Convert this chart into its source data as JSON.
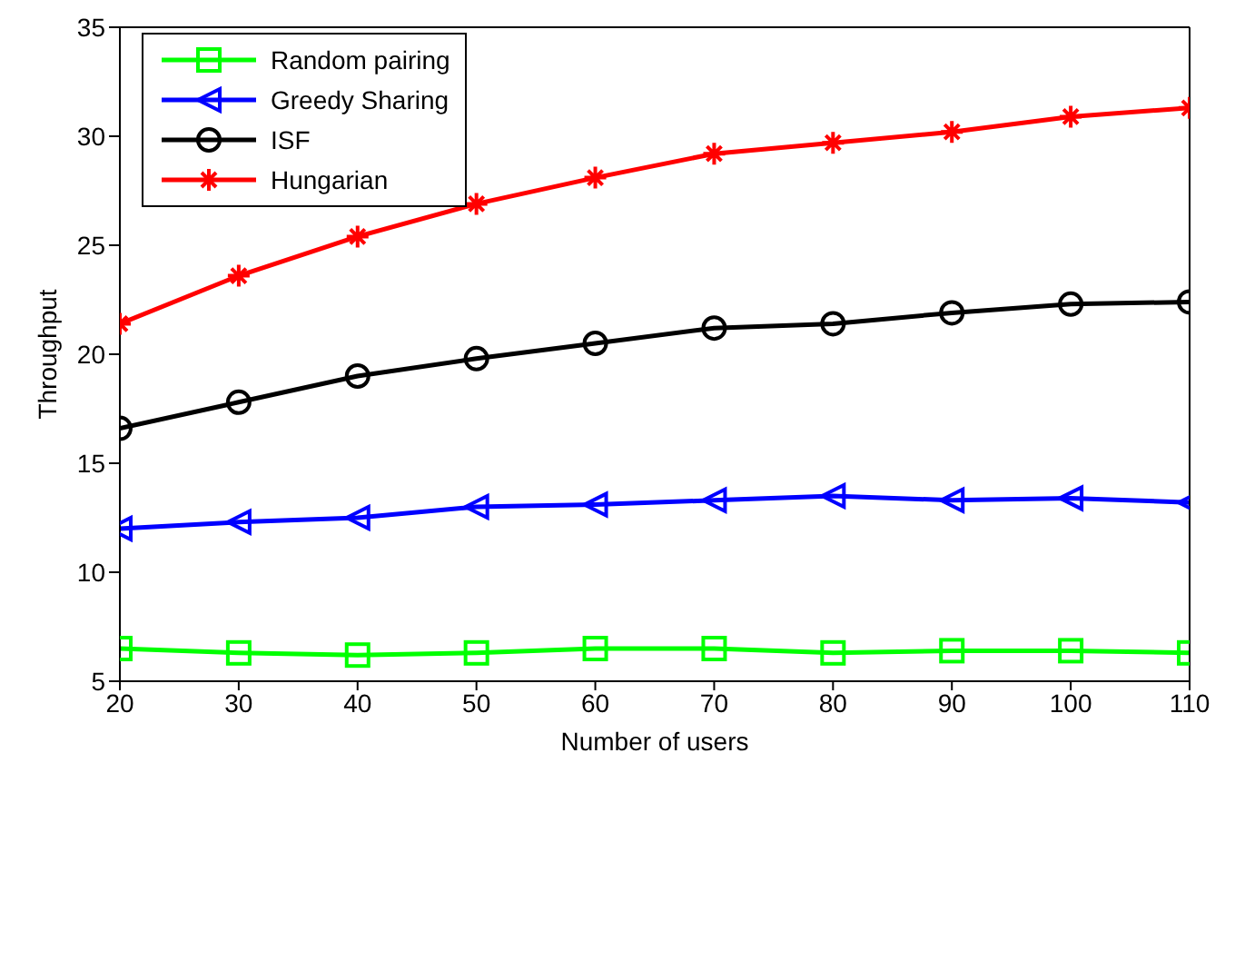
{
  "chart_data": {
    "type": "line",
    "xlabel": "Number of users",
    "ylabel": "Throughput",
    "x": [
      20,
      30,
      40,
      50,
      60,
      70,
      80,
      90,
      100,
      110
    ],
    "xlim": [
      20,
      110
    ],
    "xticks": [
      20,
      30,
      40,
      50,
      60,
      70,
      80,
      90,
      100,
      110
    ],
    "ylim": [
      5,
      35
    ],
    "yticks": [
      5,
      10,
      15,
      20,
      25,
      30,
      35
    ],
    "grid": false,
    "legend": "top left",
    "line_style": "solid",
    "series": [
      {
        "name": "Random pairing",
        "color": "#00ff00",
        "marker": "square",
        "values": [
          6.5,
          6.3,
          6.2,
          6.3,
          6.5,
          6.5,
          6.3,
          6.4,
          6.4,
          6.3
        ]
      },
      {
        "name": "Greedy Sharing",
        "color": "#0000ff",
        "marker": "triangle",
        "values": [
          12.0,
          12.3,
          12.5,
          13.0,
          13.1,
          13.3,
          13.5,
          13.3,
          13.4,
          13.2
        ]
      },
      {
        "name": "ISF",
        "color": "#000000",
        "marker": "circle",
        "values": [
          16.6,
          17.8,
          19.0,
          19.8,
          20.5,
          21.2,
          21.4,
          21.9,
          22.3,
          22.4
        ]
      },
      {
        "name": "Hungarian",
        "color": "#ff0000",
        "marker": "cross",
        "values": [
          21.4,
          23.6,
          25.4,
          26.9,
          28.1,
          29.2,
          29.7,
          30.2,
          30.9,
          31.3
        ]
      }
    ]
  }
}
